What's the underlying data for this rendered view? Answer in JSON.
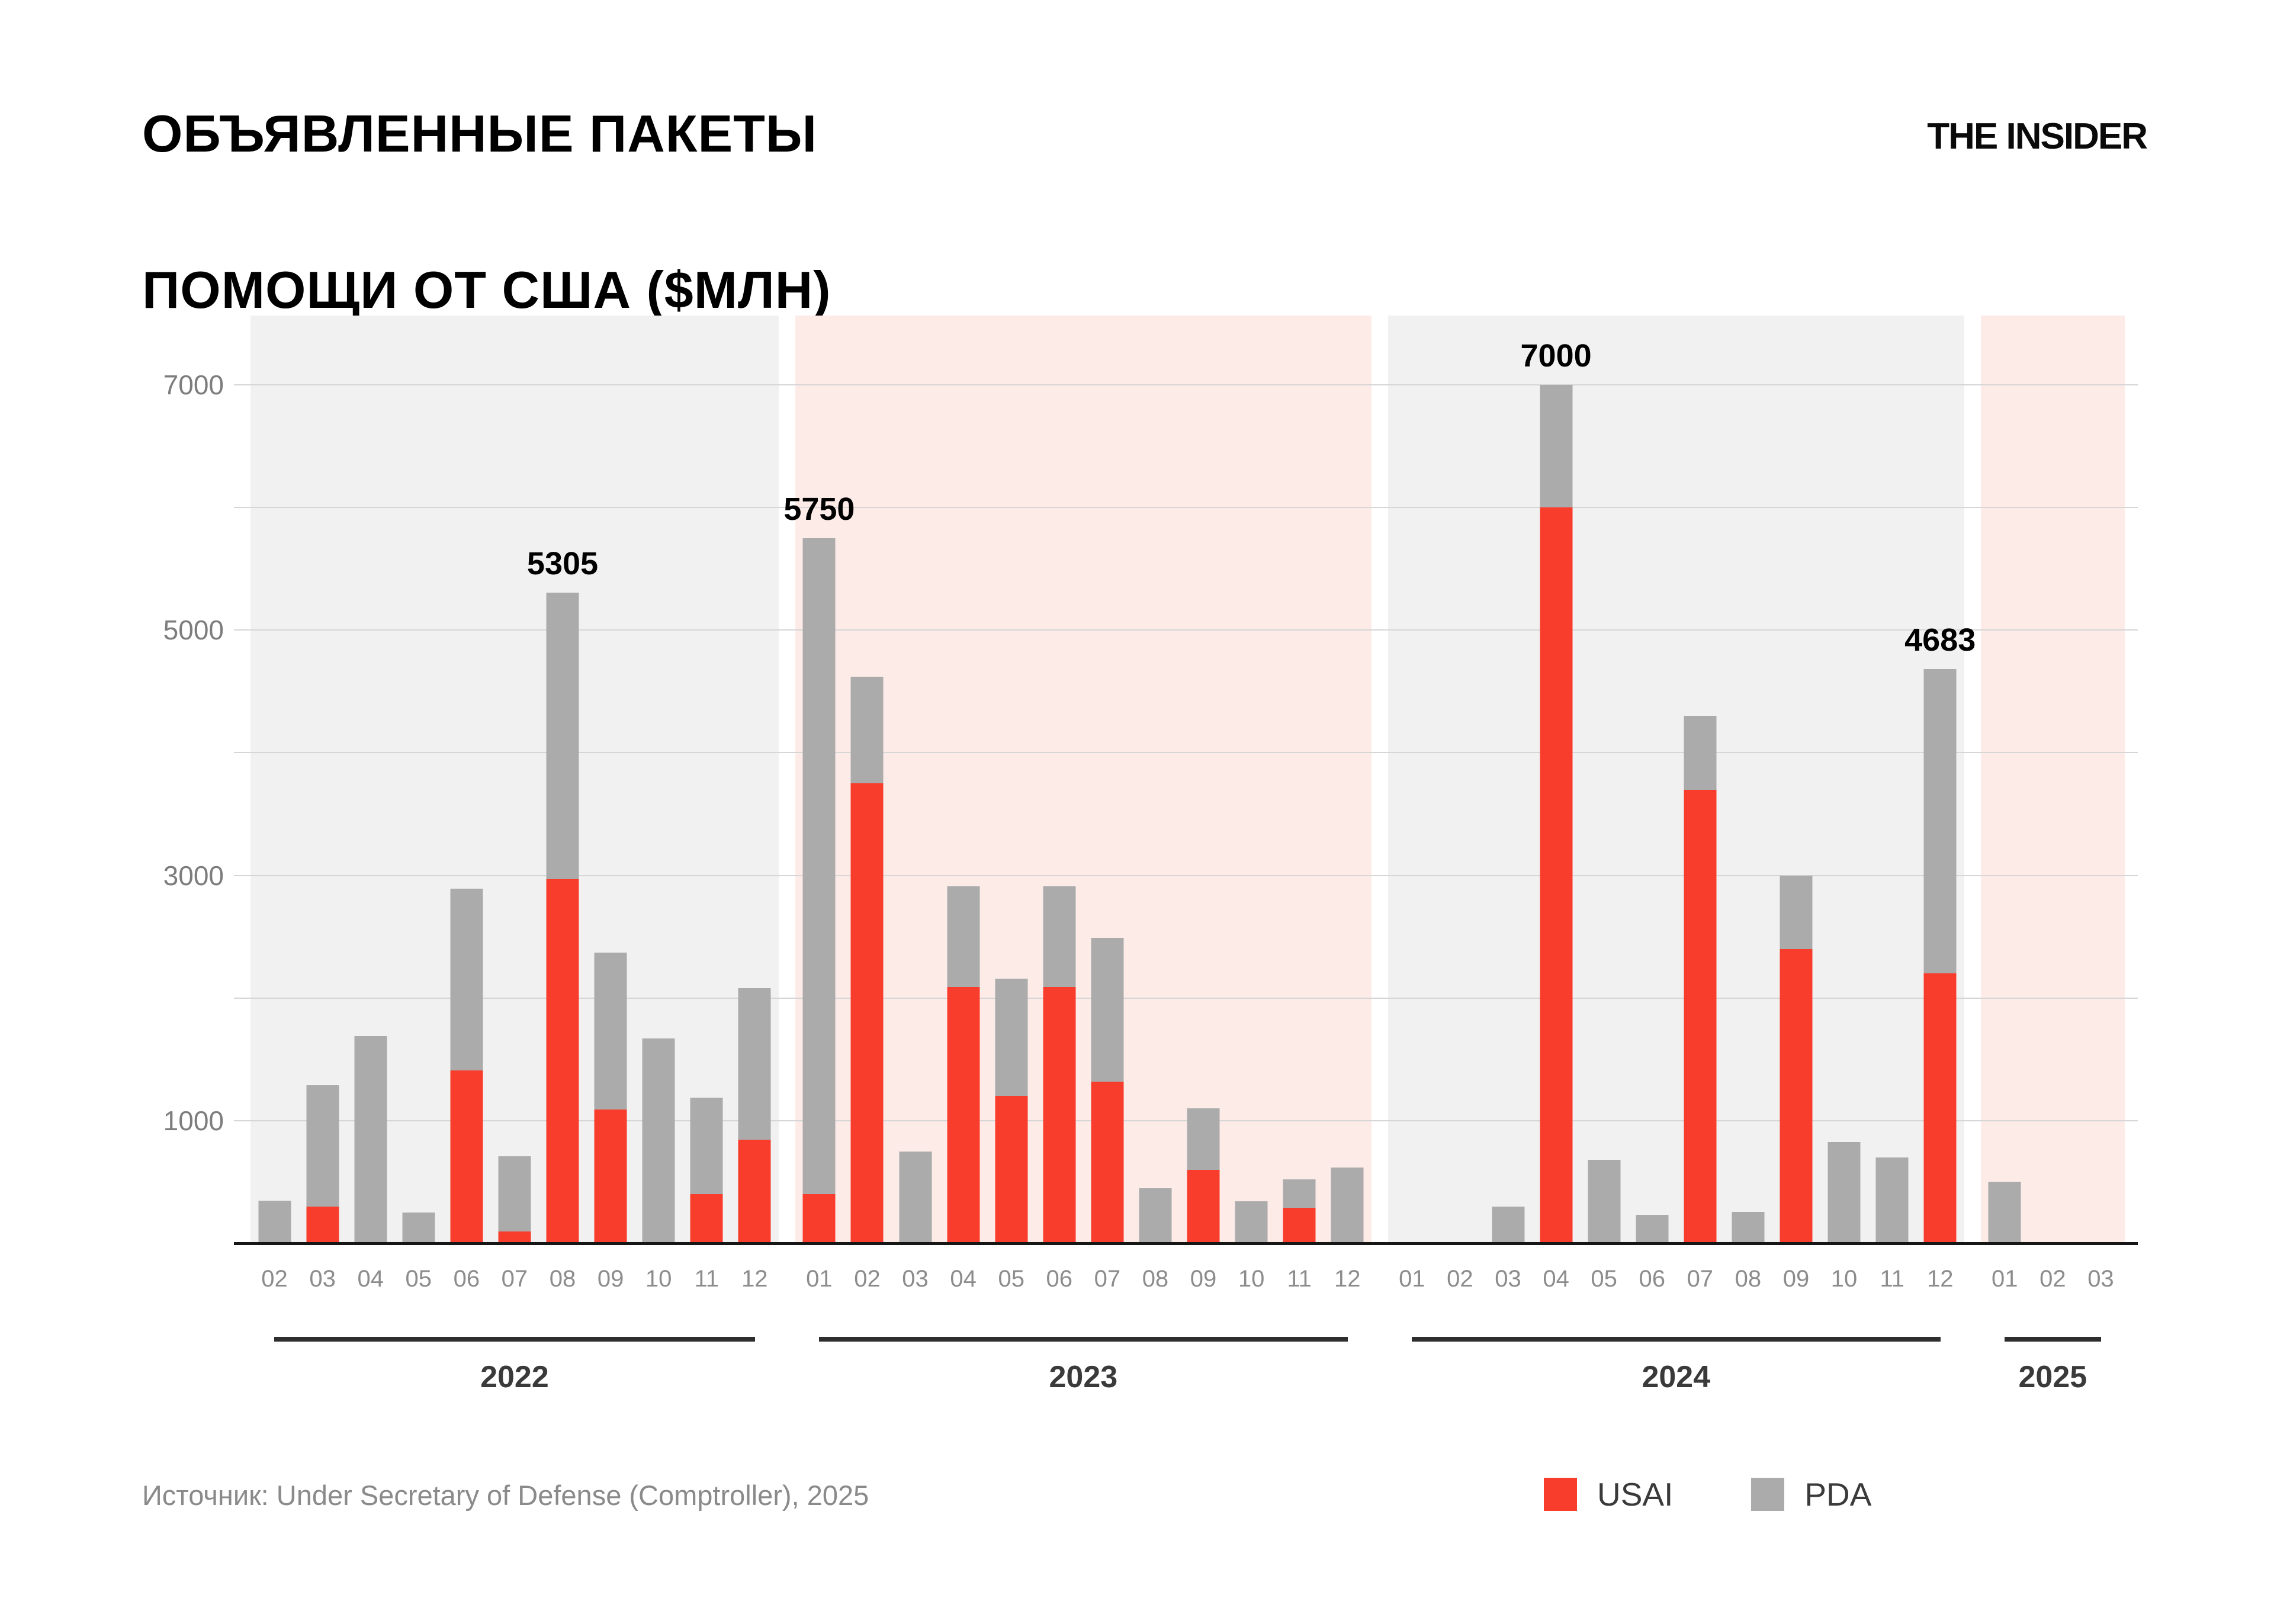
{
  "header": {
    "title_line1": "ОБЪЯВЛЕННЫЕ ПАКЕТЫ",
    "title_line2": "ПОМОЩИ ОТ США ($МЛН)",
    "logo": "THE INSIDER"
  },
  "footer": {
    "source": "Источник: Under Secretary of Defense (Comptroller), 2025"
  },
  "colors": {
    "usai": "#f93d2c",
    "pda": "#ababab",
    "panel_gray": "#f1f1f1",
    "panel_pink": "#fdebe8",
    "gridline": "#d6d6d6",
    "axis": "#161616"
  },
  "chart_data": {
    "type": "bar",
    "stacked": true,
    "title": "Объявленные пакеты помощи от США ($млн)",
    "ylabel": "$ млн",
    "ylim": [
      0,
      7400
    ],
    "yticks": [
      1000,
      3000,
      5000,
      7000
    ],
    "gridline_values": [
      1000,
      2000,
      3000,
      4000,
      5000,
      6000,
      7000
    ],
    "legend": [
      {
        "name": "USAI",
        "color": "#f93d2c"
      },
      {
        "name": "PDA",
        "color": "#ababab"
      }
    ],
    "legend_position": "bottom-right",
    "series_note": "usai = red bottom segment, pda = gray top segment, values in $ millions",
    "years": [
      {
        "year": "2022",
        "bg": "#f1f1f1",
        "months": [
          {
            "m": "02",
            "usai": 0,
            "pda": 350
          },
          {
            "m": "03",
            "usai": 300,
            "pda": 990
          },
          {
            "m": "04",
            "usai": 0,
            "pda": 1690
          },
          {
            "m": "05",
            "usai": 0,
            "pda": 250
          },
          {
            "m": "06",
            "usai": 1410,
            "pda": 1480
          },
          {
            "m": "07",
            "usai": 95,
            "pda": 615
          },
          {
            "m": "08",
            "usai": 2970,
            "pda": 2335,
            "label": "5305"
          },
          {
            "m": "09",
            "usai": 1090,
            "pda": 1280
          },
          {
            "m": "10",
            "usai": 0,
            "pda": 1670
          },
          {
            "m": "11",
            "usai": 400,
            "pda": 790
          },
          {
            "m": "12",
            "usai": 845,
            "pda": 1235
          }
        ]
      },
      {
        "year": "2023",
        "bg": "#fdebe8",
        "months": [
          {
            "m": "01",
            "usai": 400,
            "pda": 5350,
            "label": "5750"
          },
          {
            "m": "02",
            "usai": 3750,
            "pda": 870
          },
          {
            "m": "03",
            "usai": 0,
            "pda": 750
          },
          {
            "m": "04",
            "usai": 2090,
            "pda": 820
          },
          {
            "m": "05",
            "usai": 1200,
            "pda": 960
          },
          {
            "m": "06",
            "usai": 2090,
            "pda": 820
          },
          {
            "m": "07",
            "usai": 1320,
            "pda": 1170
          },
          {
            "m": "08",
            "usai": 0,
            "pda": 450
          },
          {
            "m": "09",
            "usai": 600,
            "pda": 500
          },
          {
            "m": "10",
            "usai": 0,
            "pda": 345
          },
          {
            "m": "11",
            "usai": 290,
            "pda": 230
          },
          {
            "m": "12",
            "usai": 0,
            "pda": 620
          }
        ]
      },
      {
        "year": "2024",
        "bg": "#f1f1f1",
        "months": [
          {
            "m": "01",
            "usai": 0,
            "pda": 0
          },
          {
            "m": "02",
            "usai": 0,
            "pda": 0
          },
          {
            "m": "03",
            "usai": 0,
            "pda": 300
          },
          {
            "m": "04",
            "usai": 6000,
            "pda": 1000,
            "label": "7000"
          },
          {
            "m": "05",
            "usai": 0,
            "pda": 680
          },
          {
            "m": "06",
            "usai": 0,
            "pda": 230
          },
          {
            "m": "07",
            "usai": 3700,
            "pda": 600
          },
          {
            "m": "08",
            "usai": 0,
            "pda": 255
          },
          {
            "m": "09",
            "usai": 2400,
            "pda": 600
          },
          {
            "m": "10",
            "usai": 0,
            "pda": 825
          },
          {
            "m": "11",
            "usai": 0,
            "pda": 700
          },
          {
            "m": "12",
            "usai": 2200,
            "pda": 2483,
            "label": "4683"
          }
        ]
      },
      {
        "year": "2025",
        "bg": "#fdebe8",
        "months": [
          {
            "m": "01",
            "usai": 0,
            "pda": 500
          },
          {
            "m": "02",
            "usai": 0,
            "pda": 0
          },
          {
            "m": "03",
            "usai": 0,
            "pda": 0
          }
        ]
      }
    ]
  }
}
